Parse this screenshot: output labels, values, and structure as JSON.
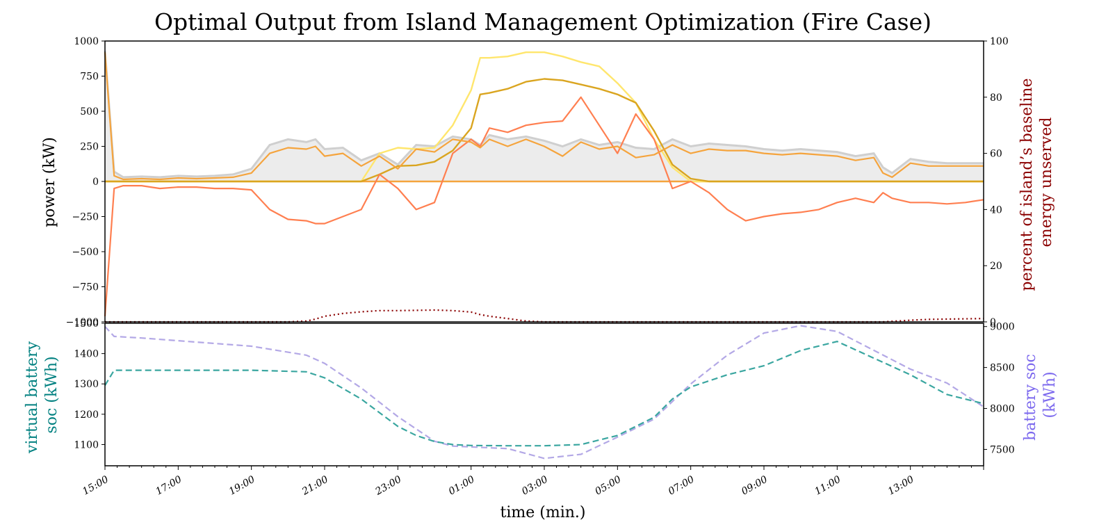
{
  "chart_data": [
    {
      "type": "line",
      "title": "Optimal Output from Island Management Optimization (Fire Case)",
      "ylabel": "power (kW)",
      "ylabel_right": "percent of island’s baseline energy unserved",
      "ylim": [
        -1000,
        1000
      ],
      "ylim_right": [
        0,
        100
      ],
      "yticks": [
        "−1000",
        "−750",
        "−500",
        "−250",
        "0",
        "250",
        "500",
        "750",
        "1000"
      ],
      "yticks_right": [
        "0",
        "20",
        "40",
        "60",
        "80",
        "100"
      ],
      "x": [
        0,
        0.25,
        0.5,
        1,
        1.5,
        2,
        2.5,
        3,
        3.5,
        4,
        4.5,
        5,
        5.5,
        5.75,
        6,
        6.5,
        7,
        7.5,
        8,
        8.5,
        9,
        9.5,
        10,
        10.25,
        10.5,
        11,
        11.5,
        12,
        12.5,
        13,
        13.5,
        14,
        14.5,
        15,
        15.5,
        16,
        16.5,
        17,
        17.5,
        18,
        18.5,
        19,
        19.5,
        20,
        20.5,
        21,
        21.25,
        21.5,
        22,
        22.5,
        23,
        23.5,
        24
      ],
      "series": [
        {
          "role": "total load (grey band)",
          "values": [
            930,
            70,
            30,
            35,
            30,
            40,
            35,
            40,
            50,
            90,
            260,
            300,
            280,
            300,
            230,
            240,
            150,
            200,
            120,
            260,
            250,
            320,
            300,
            260,
            330,
            300,
            320,
            290,
            250,
            300,
            260,
            280,
            240,
            230,
            300,
            250,
            270,
            260,
            250,
            230,
            220,
            230,
            220,
            210,
            180,
            200,
            100,
            60,
            160,
            140,
            130,
            130,
            130
          ]
        },
        {
          "role": "net supply (orange)",
          "values": [
            920,
            40,
            15,
            20,
            15,
            25,
            20,
            25,
            30,
            60,
            200,
            240,
            230,
            250,
            180,
            200,
            110,
            180,
            90,
            230,
            210,
            300,
            280,
            240,
            300,
            250,
            300,
            250,
            180,
            280,
            230,
            250,
            170,
            190,
            260,
            200,
            230,
            220,
            220,
            200,
            190,
            200,
            190,
            180,
            150,
            170,
            60,
            30,
            130,
            110,
            110,
            110,
            110
          ]
        },
        {
          "role": "unserved / curtailment (coral)",
          "values": [
            -960,
            -50,
            -30,
            -30,
            -50,
            -40,
            -40,
            -50,
            -50,
            -60,
            -200,
            -270,
            -280,
            -300,
            -300,
            -250,
            -200,
            50,
            -50,
            -200,
            -150,
            200,
            300,
            250,
            380,
            350,
            400,
            420,
            430,
            600,
            400,
            200,
            480,
            300,
            -50,
            0,
            -80,
            -200,
            -280,
            -250,
            -230,
            -220,
            -200,
            -150,
            -120,
            -150,
            -80,
            -120,
            -150,
            -150,
            -160,
            -150,
            -130
          ]
        },
        {
          "role": "solar potential (light yellow)",
          "values": [
            0,
            0,
            0,
            0,
            0,
            0,
            0,
            0,
            0,
            0,
            0,
            0,
            0,
            0,
            0,
            0,
            0,
            200,
            240,
            230,
            240,
            400,
            650,
            880,
            880,
            890,
            920,
            920,
            890,
            850,
            820,
            700,
            560,
            300,
            100,
            0,
            0,
            0,
            0,
            0,
            0,
            0,
            0,
            0,
            0,
            0,
            0,
            0,
            0,
            0,
            0,
            0,
            0
          ]
        },
        {
          "role": "solar dispatched (gold)",
          "values": [
            0,
            0,
            0,
            0,
            0,
            0,
            0,
            0,
            0,
            0,
            0,
            0,
            0,
            0,
            0,
            0,
            0,
            50,
            110,
            115,
            140,
            220,
            380,
            620,
            630,
            660,
            710,
            730,
            720,
            690,
            660,
            620,
            560,
            360,
            120,
            20,
            0,
            0,
            0,
            0,
            0,
            0,
            0,
            0,
            0,
            0,
            0,
            0,
            0,
            0,
            0,
            0,
            0
          ]
        },
        {
          "role": "percent of island's baseline energy unserved (dotted, right axis)",
          "values": [
            0,
            0,
            0,
            0,
            0,
            0,
            0,
            0,
            0,
            0,
            0,
            0,
            0.3,
            1,
            2,
            3,
            3.6,
            4,
            4,
            4.1,
            4.2,
            4,
            3.5,
            2.6,
            2,
            1.2,
            0.3,
            0,
            0,
            0,
            0,
            0,
            0,
            0,
            0,
            0,
            0,
            0,
            0,
            0,
            0,
            0,
            0,
            0,
            0,
            0,
            0,
            0.2,
            0.6,
            0.9,
            1,
            1.1,
            1.2
          ]
        }
      ]
    },
    {
      "type": "line",
      "ylabel": "virtual battery soc (kWh)",
      "ylabel_right": "battery soc (kWh)",
      "xlabel": "time (min.)",
      "ylim": [
        1030,
        1500
      ],
      "ylim_right": [
        7300,
        9040
      ],
      "yticks": [
        "1100",
        "1200",
        "1300",
        "1400",
        "1500"
      ],
      "yticks_right": [
        "7500",
        "8000",
        "8500",
        "9000"
      ],
      "xticks": [
        "15:00",
        "17:00",
        "19:00",
        "21:00",
        "23:00",
        "01:00",
        "03:00",
        "05:00",
        "07:00",
        "09:00",
        "11:00",
        "13:00"
      ],
      "series": [
        {
          "role": "virtual battery soc (teal, left axis)",
          "x": [
            0,
            0.25,
            1,
            4,
            5.5,
            6,
            7,
            8,
            8.5,
            9,
            9.5,
            10,
            11,
            12,
            13,
            14,
            15,
            15.5,
            16,
            17,
            18,
            19,
            20,
            22,
            23,
            24
          ],
          "values": [
            1295,
            1345,
            1345,
            1345,
            1340,
            1320,
            1250,
            1160,
            1130,
            1110,
            1100,
            1097,
            1096,
            1096,
            1100,
            1130,
            1190,
            1250,
            1290,
            1330,
            1360,
            1410,
            1440,
            1330,
            1265,
            1235
          ]
        },
        {
          "role": "battery soc (lavender, right axis)",
          "x": [
            0,
            0.25,
            1,
            4,
            5.5,
            6,
            7,
            8,
            9,
            9.5,
            10,
            11,
            12,
            13,
            14,
            15,
            16,
            17,
            18,
            19,
            20,
            22,
            23,
            24
          ],
          "values": [
            9000,
            8880,
            8860,
            8760,
            8650,
            8550,
            8250,
            7900,
            7600,
            7540,
            7530,
            7510,
            7390,
            7440,
            7650,
            7870,
            8300,
            8650,
            8920,
            9010,
            8940,
            8480,
            8310,
            8020
          ]
        }
      ]
    }
  ],
  "colors": {
    "band_fill": "#ececec",
    "band_edge": "#cfcfcf",
    "net_orange": "#f5a43d",
    "coral": "#ff7f50",
    "solar_potential": "#ffe66d",
    "solar_dispatch": "#daa520",
    "unserved_dotted": "#8b0000",
    "right_label": "#8b0000",
    "teal": "#3aa6a0",
    "lavender": "#b3a8e6",
    "teal_label": "#008080",
    "lavender_label": "#7b68ee"
  }
}
